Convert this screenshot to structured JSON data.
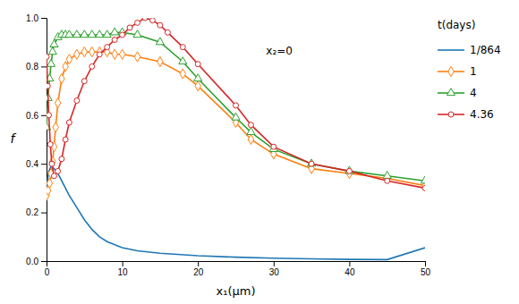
{
  "chart_data": {
    "type": "line",
    "x_label": "x₁(μm)",
    "y_label": "f",
    "annotation": "x₂=0",
    "legend_title": "t(days)",
    "legend": "right",
    "grid": false,
    "xlim": [
      0,
      50
    ],
    "ylim": [
      0.0,
      1.0
    ],
    "xticks": [
      0,
      10,
      20,
      30,
      40,
      50
    ],
    "yticks": [
      {
        "value": 0.0,
        "label": "0.0"
      },
      0.2,
      0.4,
      0.6,
      0.8,
      {
        "value": 1.0,
        "label": "1.0"
      }
    ],
    "series": [
      {
        "name": "1/864",
        "marker": "none",
        "x": [
          0,
          0.3,
          0.6,
          1.0,
          1.5,
          2.0,
          3.0,
          4.0,
          5.0,
          6.0,
          7.0,
          8.0,
          10.0,
          12.0,
          15.0,
          20.0,
          25.0,
          30.0,
          35.0,
          40.0,
          45.0,
          50.0
        ],
        "values": [
          0.3,
          0.37,
          0.39,
          0.38,
          0.36,
          0.33,
          0.27,
          0.22,
          0.17,
          0.13,
          0.1,
          0.08,
          0.055,
          0.042,
          0.032,
          0.022,
          0.016,
          0.012,
          0.009,
          0.007,
          0.006,
          0.055
        ]
      },
      {
        "name": "1",
        "marker": "diamond",
        "x": [
          0.0,
          0.2,
          0.4,
          0.6,
          0.8,
          1.0,
          1.2,
          1.5,
          2.0,
          2.5,
          3.0,
          4.0,
          5.0,
          6.0,
          7.0,
          8.0,
          9.0,
          10.0,
          12.0,
          15.0,
          18.0,
          20.0,
          25.0,
          27.0,
          30.0,
          35.0,
          40.0,
          45.0,
          50.0
        ],
        "values": [
          0.27,
          0.29,
          0.32,
          0.36,
          0.41,
          0.47,
          0.55,
          0.65,
          0.75,
          0.8,
          0.83,
          0.85,
          0.86,
          0.86,
          0.86,
          0.86,
          0.85,
          0.85,
          0.84,
          0.82,
          0.77,
          0.72,
          0.57,
          0.5,
          0.44,
          0.38,
          0.36,
          0.34,
          0.31
        ]
      },
      {
        "name": "4",
        "marker": "triangle",
        "x": [
          0.0,
          0.2,
          0.4,
          0.6,
          0.8,
          1.0,
          1.5,
          2.0,
          2.5,
          3.0,
          4.0,
          5.0,
          6.0,
          7.0,
          8.0,
          9.0,
          10.0,
          12.0,
          15.0,
          18.0,
          20.0,
          25.0,
          27.0,
          30.0,
          35.0,
          40.0,
          45.0,
          50.0
        ],
        "values": [
          0.55,
          0.67,
          0.75,
          0.81,
          0.86,
          0.89,
          0.92,
          0.93,
          0.93,
          0.93,
          0.93,
          0.93,
          0.93,
          0.93,
          0.93,
          0.94,
          0.94,
          0.93,
          0.9,
          0.82,
          0.75,
          0.59,
          0.53,
          0.46,
          0.4,
          0.37,
          0.35,
          0.33
        ]
      },
      {
        "name": "4.36",
        "marker": "circle",
        "x": [
          0.0,
          0.15,
          0.3,
          0.5,
          0.7,
          1.0,
          1.5,
          2.0,
          2.5,
          3.0,
          4.0,
          5.0,
          6.0,
          7.0,
          8.0,
          9.0,
          10.0,
          11.0,
          12.0,
          13.0,
          14.0,
          15.0,
          16.0,
          18.0,
          20.0,
          25.0,
          27.0,
          30.0,
          35.0,
          40.0,
          45.0,
          50.0
        ],
        "values": [
          0.84,
          0.72,
          0.6,
          0.48,
          0.4,
          0.35,
          0.37,
          0.42,
          0.5,
          0.57,
          0.66,
          0.74,
          0.8,
          0.85,
          0.88,
          0.91,
          0.93,
          0.96,
          0.98,
          1.0,
          0.99,
          0.97,
          0.94,
          0.88,
          0.81,
          0.64,
          0.56,
          0.47,
          0.4,
          0.37,
          0.33,
          0.3
        ]
      }
    ]
  }
}
